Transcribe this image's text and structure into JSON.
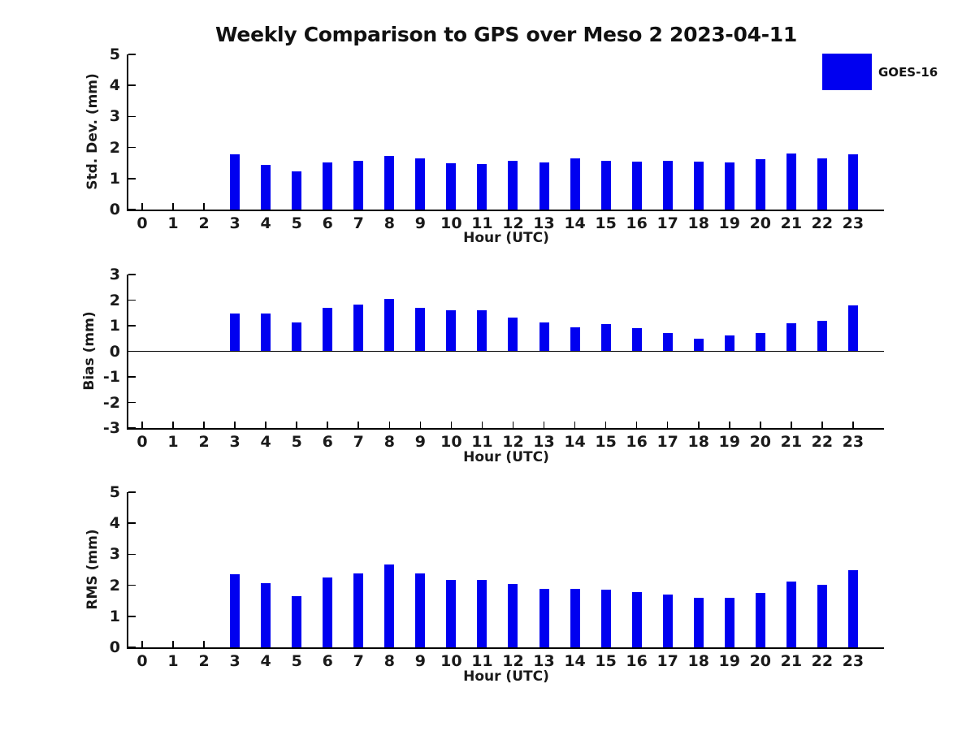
{
  "title": "Weekly Comparison to GPS over Meso 2 2023-04-11",
  "legend": {
    "label": "GOES-16",
    "swatch_color": "#0000F0"
  },
  "colors": {
    "bar": "#0000F0",
    "axis": "#000000",
    "text": "#1a1a1a"
  },
  "chart_data": [
    {
      "type": "bar",
      "name": "std-dev",
      "ylabel": "Std. Dev. (mm)",
      "xlabel": "Hour (UTC)",
      "ylim": [
        0,
        5
      ],
      "yticks": [
        0,
        1,
        2,
        3,
        4,
        5
      ],
      "grid": false,
      "legend_position": "outside-top-right",
      "categories": [
        0,
        1,
        2,
        3,
        4,
        5,
        6,
        7,
        8,
        9,
        10,
        11,
        12,
        13,
        14,
        15,
        16,
        17,
        18,
        19,
        20,
        21,
        22,
        23
      ],
      "series": [
        {
          "name": "GOES-16",
          "values": [
            null,
            null,
            null,
            1.78,
            1.45,
            1.22,
            1.52,
            1.57,
            1.74,
            1.66,
            1.48,
            1.46,
            1.57,
            1.52,
            1.65,
            1.57,
            1.55,
            1.57,
            1.55,
            1.51,
            1.62,
            1.8,
            1.65,
            1.78
          ]
        }
      ]
    },
    {
      "type": "bar",
      "name": "bias",
      "ylabel": "Bias (mm)",
      "xlabel": "Hour (UTC)",
      "ylim": [
        -3,
        3
      ],
      "yticks": [
        3,
        2,
        1,
        0,
        -1,
        -2,
        -3
      ],
      "grid": false,
      "zero_line": true,
      "categories": [
        0,
        1,
        2,
        3,
        4,
        5,
        6,
        7,
        8,
        9,
        10,
        11,
        12,
        13,
        14,
        15,
        16,
        17,
        18,
        19,
        20,
        21,
        22,
        23
      ],
      "series": [
        {
          "name": "GOES-16",
          "values": [
            null,
            null,
            null,
            1.48,
            1.48,
            1.13,
            1.7,
            1.84,
            2.05,
            1.71,
            1.61,
            1.61,
            1.33,
            1.13,
            0.93,
            1.05,
            0.9,
            0.7,
            0.48,
            0.62,
            0.72,
            1.1,
            1.19,
            1.78
          ]
        }
      ]
    },
    {
      "type": "bar",
      "name": "rms",
      "ylabel": "RMS (mm)",
      "xlabel": "Hour (UTC)",
      "ylim": [
        0,
        5
      ],
      "yticks": [
        0,
        1,
        2,
        3,
        4,
        5
      ],
      "grid": false,
      "categories": [
        0,
        1,
        2,
        3,
        4,
        5,
        6,
        7,
        8,
        9,
        10,
        11,
        12,
        13,
        14,
        15,
        16,
        17,
        18,
        19,
        20,
        21,
        22,
        23
      ],
      "series": [
        {
          "name": "GOES-16",
          "values": [
            null,
            null,
            null,
            2.35,
            2.08,
            1.66,
            2.26,
            2.39,
            2.66,
            2.39,
            2.18,
            2.18,
            2.04,
            1.88,
            1.88,
            1.85,
            1.78,
            1.7,
            1.6,
            1.6,
            1.75,
            2.11,
            2.02,
            2.48
          ]
        }
      ]
    }
  ]
}
